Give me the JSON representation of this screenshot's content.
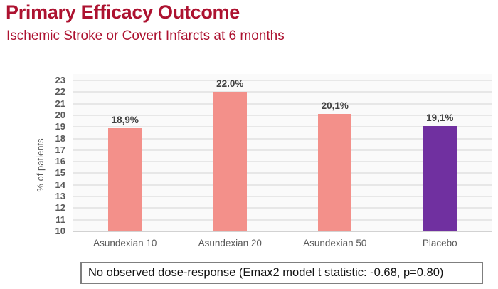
{
  "header": {
    "title": "Primary Efficacy Outcome",
    "subtitle": "Ischemic Stroke or Covert Infarcts at 6 months",
    "accent_color": "#ad1230"
  },
  "chart_data": {
    "type": "bar",
    "title": "Primary Efficacy Outcome",
    "subtitle": "Ischemic Stroke or Covert Infarcts at 6 months",
    "xlabel": "",
    "ylabel": "% of patients",
    "ylim": [
      10,
      23
    ],
    "ytick_step": 1,
    "grid": true,
    "legend_position": "none",
    "categories": [
      "Asundexian 10",
      "Asundexian 20",
      "Asundexian 50",
      "Placebo"
    ],
    "values": [
      18.9,
      22.0,
      20.1,
      19.1
    ],
    "value_labels": [
      "18,9%",
      "22.0%",
      "20,1%",
      "19,1%"
    ],
    "bar_colors": [
      "#f3908a",
      "#f3908a",
      "#f3908a",
      "#7030a0"
    ]
  },
  "note": {
    "text": "No observed dose-response (Emax2 model t statistic: -0.68, p=0.80)"
  },
  "colors": {
    "title_red": "#ad1230",
    "bar_salmon": "#f3908a",
    "bar_purple": "#7030a0",
    "axis_text": "#595959",
    "gridline": "#e7e7e7",
    "note_border": "#7f7f7f"
  }
}
